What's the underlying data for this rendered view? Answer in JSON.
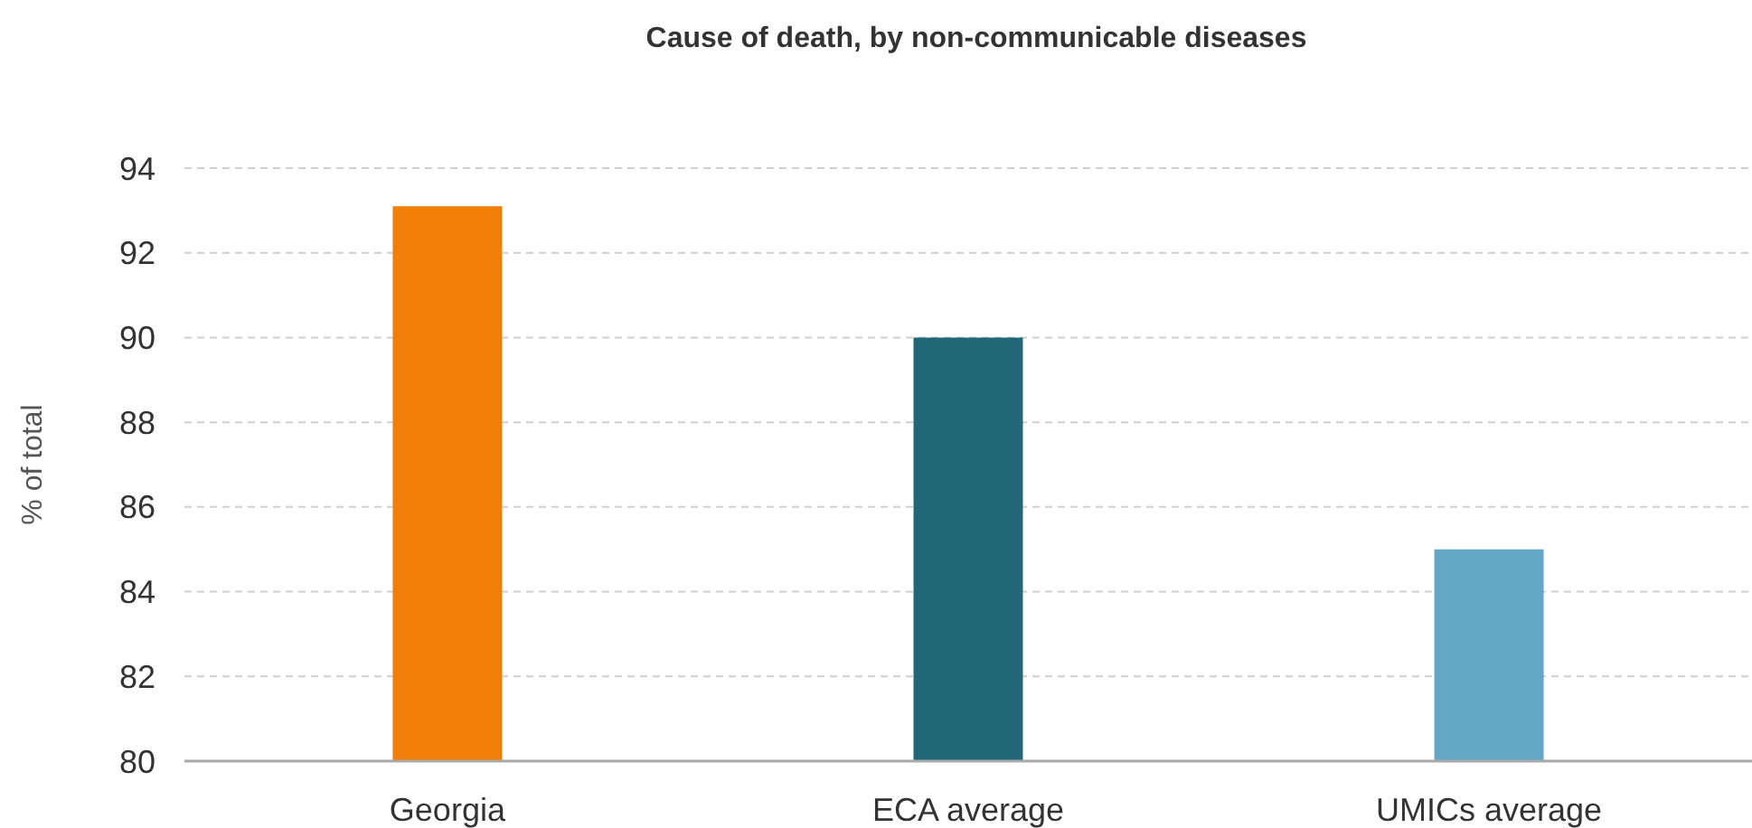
{
  "chart_data": {
    "type": "bar",
    "title": "Cause of death, by non-communicable diseases",
    "ylabel": "% of total",
    "categories": [
      "Georgia",
      "ECA average",
      "UMICs average"
    ],
    "values": [
      93.1,
      90.0,
      85.0
    ],
    "colors": [
      "#f07f09",
      "#216777",
      "#62a8c5"
    ],
    "ylim": [
      80,
      94
    ],
    "yticks": [
      80,
      82,
      84,
      86,
      88,
      90,
      92,
      94
    ],
    "grid": "y"
  }
}
